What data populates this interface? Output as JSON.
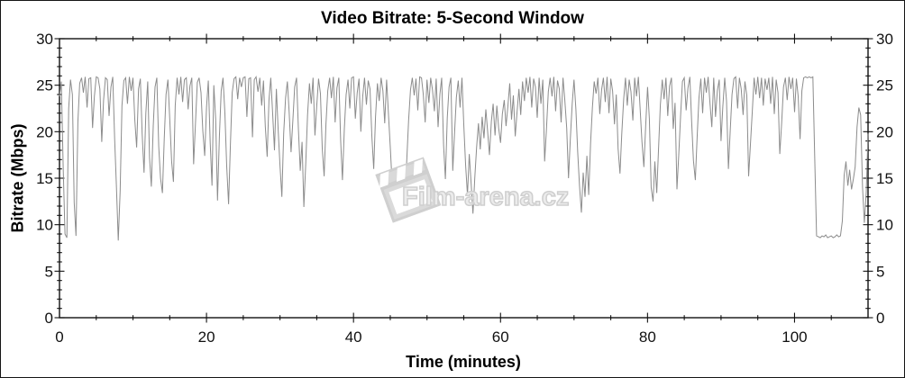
{
  "chart": {
    "title": "Video Bitrate: 5-Second Window",
    "ylabel": "Bitrate (Mbps)",
    "xlabel": "Time (minutes)"
  },
  "watermark": {
    "text": "Film-arena.cz",
    "icon": "clapperboard-icon",
    "color": "#d6d6d6"
  },
  "chart_data": {
    "type": "line",
    "title": "Video Bitrate: 5-Second Window",
    "xlabel": "Time (minutes)",
    "ylabel": "Bitrate (Mbps)",
    "xlim": [
      0,
      110
    ],
    "ylim": [
      0,
      30
    ],
    "x_major_ticks": [
      0,
      20,
      40,
      60,
      80,
      100
    ],
    "x_minor_step": 5,
    "y_major_ticks": [
      0,
      5,
      10,
      15,
      20,
      25,
      30
    ],
    "y_minor_step": 1,
    "grid": false,
    "legend": "none",
    "mirrored_axes": true,
    "line_color": "#8c8c8c",
    "axis_color": "#111111",
    "series": [
      {
        "name": "video-bitrate-mbps",
        "x_start": 0,
        "x_step": 0.25,
        "values": [
          23.8,
          25.4,
          16.2,
          9.0,
          8.6,
          22.5,
          25.6,
          24.0,
          12.4,
          8.8,
          21.0,
          25.2,
          25.8,
          24.2,
          25.9,
          22.6,
          25.7,
          25.8,
          20.4,
          23.8,
          25.9,
          25.8,
          24.6,
          18.9,
          23.4,
          25.8,
          25.6,
          21.7,
          24.8,
          25.9,
          19.2,
          14.0,
          8.3,
          13.6,
          22.8,
          25.5,
          25.8,
          23.0,
          25.9,
          24.4,
          25.8,
          21.2,
          18.3,
          24.6,
          25.7,
          19.8,
          15.6,
          22.0,
          25.4,
          17.2,
          14.1,
          20.6,
          24.8,
          25.8,
          18.4,
          15.0,
          13.4,
          19.2,
          24.0,
          25.6,
          21.4,
          16.8,
          14.6,
          22.8,
          25.8,
          24.0,
          25.9,
          23.2,
          25.6,
          25.8,
          22.4,
          24.9,
          25.8,
          16.5,
          21.0,
          25.3,
          25.8,
          24.2,
          20.1,
          17.4,
          22.6,
          25.5,
          18.8,
          14.2,
          25.0,
          21.3,
          12.6,
          19.5,
          24.4,
          25.8,
          22.0,
          16.3,
          12.2,
          18.6,
          24.2,
          25.7,
          25.9,
          23.5,
          25.8,
          24.8,
          25.8,
          25.9,
          21.6,
          25.7,
          25.8,
          19.4,
          25.6,
          25.9,
          24.3,
          25.8,
          22.8,
          25.5,
          20.6,
          17.3,
          23.4,
          25.8,
          21.9,
          18.0,
          24.6,
          20.2,
          16.4,
          13.0,
          19.8,
          23.6,
          25.4,
          22.1,
          17.8,
          21.2,
          24.8,
          25.8,
          20.4,
          15.8,
          18.9,
          11.9,
          16.6,
          21.8,
          25.2,
          23.0,
          25.8,
          19.6,
          22.8,
          25.7,
          24.1,
          18.2,
          15.2,
          20.8,
          24.4,
          25.8,
          23.6,
          25.9,
          21.0,
          24.7,
          25.8,
          19.1,
          14.8,
          20.3,
          24.0,
          25.6,
          22.5,
          25.8,
          25.9,
          21.4,
          24.2,
          25.7,
          20.0,
          23.8,
          25.8,
          22.9,
          25.5,
          24.6,
          19.4,
          16.0,
          21.6,
          25.2,
          23.3,
          25.8,
          24.4,
          20.9,
          25.6,
          22.0,
          18.3,
          14.5,
          13.2,
          15.4,
          13.9,
          13.5,
          16.2,
          14.3,
          13.4,
          17.0,
          21.2,
          24.5,
          25.8,
          23.9,
          25.7,
          22.3,
          25.9,
          25.8,
          24.0,
          21.0,
          25.6,
          23.1,
          25.8,
          24.5,
          22.2,
          25.7,
          20.5,
          24.0,
          25.8,
          18.6,
          14.9,
          21.5,
          24.8,
          25.8,
          15.8,
          19.9,
          23.7,
          25.5,
          22.6,
          25.8,
          20.8,
          16.5,
          13.2,
          17.6,
          14.4,
          11.2,
          15.0,
          18.4,
          20.9,
          18.1,
          21.6,
          19.3,
          22.4,
          20.0,
          17.5,
          21.1,
          23.0,
          19.6,
          22.8,
          20.4,
          18.8,
          21.9,
          23.4,
          20.6,
          22.7,
          25.2,
          21.3,
          23.9,
          19.5,
          22.1,
          24.6,
          21.8,
          25.4,
          23.3,
          25.8,
          24.2,
          25.9,
          22.6,
          25.7,
          24.8,
          21.5,
          25.8,
          23.0,
          25.6,
          16.8,
          20.2,
          24.3,
          25.8,
          23.8,
          25.9,
          22.2,
          25.5,
          24.6,
          21.0,
          25.8,
          23.4,
          20.4,
          15.0,
          19.2,
          23.0,
          25.6,
          22.4,
          17.8,
          14.2,
          11.3,
          15.6,
          13.0,
          17.4,
          13.2,
          18.8,
          22.6,
          25.4,
          24.1,
          25.8,
          21.9,
          24.5,
          25.8,
          23.2,
          25.9,
          22.0,
          25.7,
          24.4,
          20.8,
          24.0,
          18.2,
          15.5,
          19.8,
          23.5,
          25.8,
          22.8,
          25.6,
          24.3,
          21.2,
          25.8,
          23.8,
          25.9,
          22.4,
          18.9,
          16.2,
          20.6,
          24.8,
          21.4,
          14.0,
          12.5,
          16.8,
          13.4,
          18.2,
          22.9,
          25.6,
          23.5,
          25.8,
          21.7,
          24.9,
          25.8,
          20.3,
          23.1,
          13.8,
          17.5,
          21.8,
          25.4,
          25.8,
          22.3,
          24.7,
          25.9,
          21.1,
          16.9,
          14.8,
          19.4,
          23.6,
          25.7,
          22.0,
          25.8,
          24.2,
          25.9,
          23.0,
          20.5,
          25.8,
          21.6,
          24.4,
          25.6,
          19.0,
          22.7,
          25.8,
          23.3,
          16.0,
          20.1,
          24.0,
          25.7,
          25.9,
          22.5,
          25.8,
          24.6,
          21.8,
          25.4,
          23.9,
          15.2,
          18.6,
          22.2,
          25.8,
          24.0,
          25.9,
          23.6,
          25.8,
          22.8,
          25.7,
          24.5,
          25.8,
          23.0,
          25.9,
          21.9,
          25.6,
          24.2,
          17.6,
          21.0,
          24.8,
          25.8,
          23.4,
          25.9,
          24.6,
          25.8,
          22.1,
          25.7,
          23.8,
          19.2,
          24.4,
          25.8,
          25.9,
          25.8,
          25.9,
          25.8,
          25.9,
          17.0,
          8.8,
          8.7,
          8.6,
          8.8,
          8.7,
          8.9,
          8.6,
          8.7,
          8.8,
          8.6,
          8.7,
          8.9,
          8.7,
          8.8,
          10.4,
          15.3,
          16.8,
          14.2,
          15.9,
          13.8,
          14.9,
          16.2,
          20.5,
          22.6,
          21.8,
          14.0,
          10.2,
          13.5,
          19.8
        ]
      }
    ]
  }
}
